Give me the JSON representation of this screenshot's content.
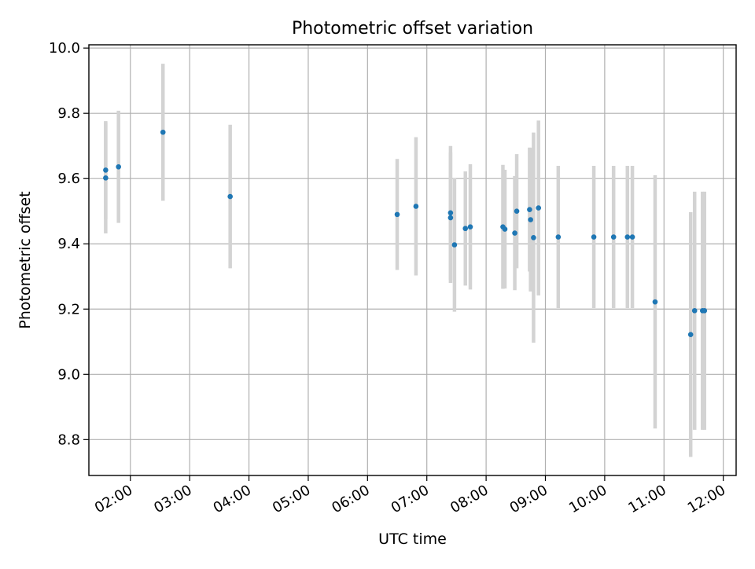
{
  "chart_data": {
    "type": "scatter",
    "title": "Photometric offset variation",
    "xlabel": "UTC time",
    "ylabel": "Photometric offset",
    "xlim": [
      "01:18",
      "12:13"
    ],
    "ylim": [
      8.69,
      10.01
    ],
    "xticks": [
      "02:00",
      "03:00",
      "04:00",
      "05:00",
      "06:00",
      "07:00",
      "08:00",
      "09:00",
      "10:00",
      "11:00",
      "12:00"
    ],
    "yticks": [
      "8.8",
      "9.0",
      "9.2",
      "9.4",
      "9.6",
      "9.8",
      "10.0"
    ],
    "grid": true,
    "point_color": "#1f77b4",
    "errorbar_color": "#d3d3d3",
    "points": [
      {
        "x": "01:35",
        "y": 9.626,
        "yerr": 0.15
      },
      {
        "x": "01:35",
        "y": 9.602,
        "yerr": 0.17
      },
      {
        "x": "01:48",
        "y": 9.636,
        "yerr": 0.172
      },
      {
        "x": "02:33",
        "y": 9.742,
        "yerr": 0.21
      },
      {
        "x": "03:41",
        "y": 9.545,
        "yerr": 0.22
      },
      {
        "x": "06:30",
        "y": 9.49,
        "yerr": 0.17
      },
      {
        "x": "06:49",
        "y": 9.515,
        "yerr": 0.212
      },
      {
        "x": "07:24",
        "y": 9.495,
        "yerr": 0.205
      },
      {
        "x": "07:24",
        "y": 9.48,
        "yerr": 0.2
      },
      {
        "x": "07:28",
        "y": 9.397,
        "yerr": 0.205
      },
      {
        "x": "07:39",
        "y": 9.447,
        "yerr": 0.175
      },
      {
        "x": "07:44",
        "y": 9.452,
        "yerr": 0.192
      },
      {
        "x": "08:17",
        "y": 9.452,
        "yerr": 0.19
      },
      {
        "x": "08:19",
        "y": 9.445,
        "yerr": 0.182
      },
      {
        "x": "08:29",
        "y": 9.433,
        "yerr": 0.175
      },
      {
        "x": "08:31",
        "y": 9.5,
        "yerr": 0.175
      },
      {
        "x": "08:44",
        "y": 9.505,
        "yerr": 0.19
      },
      {
        "x": "08:45",
        "y": 9.474,
        "yerr": 0.22
      },
      {
        "x": "08:48",
        "y": 9.419,
        "yerr": 0.322
      },
      {
        "x": "08:53",
        "y": 9.51,
        "yerr": 0.268
      },
      {
        "x": "09:13",
        "y": 9.421,
        "yerr": 0.218
      },
      {
        "x": "09:49",
        "y": 9.421,
        "yerr": 0.218
      },
      {
        "x": "10:09",
        "y": 9.421,
        "yerr": 0.218
      },
      {
        "x": "10:23",
        "y": 9.421,
        "yerr": 0.218
      },
      {
        "x": "10:28",
        "y": 9.421,
        "yerr": 0.218
      },
      {
        "x": "10:51",
        "y": 9.222,
        "yerr": 0.388
      },
      {
        "x": "11:27",
        "y": 9.122,
        "yerr": 0.375
      },
      {
        "x": "11:31",
        "y": 9.195,
        "yerr": 0.365
      },
      {
        "x": "11:39",
        "y": 9.195,
        "yerr": 0.365
      },
      {
        "x": "11:41",
        "y": 9.195,
        "yerr": 0.365
      }
    ]
  }
}
